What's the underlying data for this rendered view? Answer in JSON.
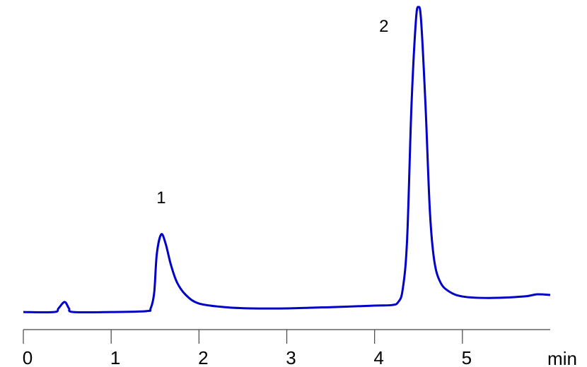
{
  "chart_data": {
    "type": "line",
    "title": "",
    "xlabel": "min",
    "ylabel": "",
    "xlim": [
      0,
      6
    ],
    "ylim": [
      0,
      100
    ],
    "y_axis_shown": false,
    "grid": false,
    "x_ticks": [
      0,
      1,
      2,
      3,
      4,
      5
    ],
    "x_tick_labels": [
      "0",
      "1",
      "2",
      "3",
      "4",
      "5"
    ],
    "line_color": "#0000c8",
    "series": [
      {
        "x": [
          0,
          0.35,
          0.4,
          0.47,
          0.52,
          0.57,
          1.0,
          1.4,
          1.45,
          1.49,
          1.52,
          1.57,
          1.62,
          1.68,
          1.75,
          1.85,
          2.0,
          2.3,
          2.6,
          3.0,
          3.5,
          4.0,
          4.2,
          4.27,
          4.32,
          4.37,
          4.42,
          4.47,
          4.5,
          4.53,
          4.58,
          4.63,
          4.68,
          4.75,
          4.85,
          5.0,
          5.3,
          5.7,
          5.85,
          6.0
        ],
        "y": [
          0.2,
          0.2,
          1.4,
          3.5,
          1.4,
          0.2,
          0.2,
          0.5,
          1.4,
          6.5,
          19.2,
          25.6,
          22.6,
          15.7,
          9.9,
          5.8,
          3.0,
          1.8,
          1.4,
          1.4,
          1.8,
          2.3,
          2.5,
          3.5,
          7.6,
          23.8,
          67.7,
          95.4,
          100,
          95.4,
          67.7,
          33.0,
          16.9,
          9.9,
          6.9,
          5.3,
          4.8,
          5.3,
          6.0,
          5.8
        ]
      }
    ],
    "annotations": [
      {
        "text": "1",
        "x": 1.57,
        "y": 25.6
      },
      {
        "text": "2",
        "x": 4.5,
        "y": 100
      }
    ]
  }
}
